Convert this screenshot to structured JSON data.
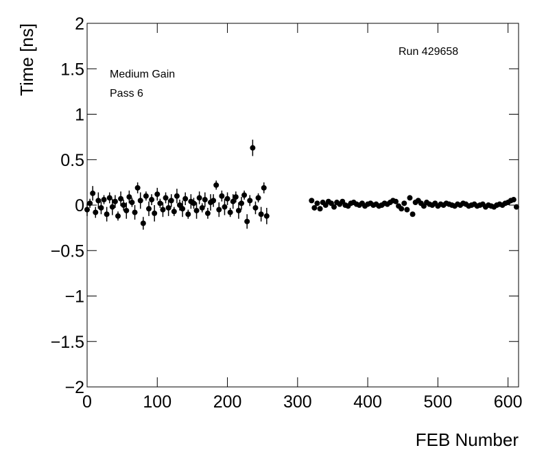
{
  "chart_data": {
    "type": "errorbar",
    "xlabel": "FEB Number",
    "ylabel": "Time [ns]",
    "annotations": [
      "Medium Gain",
      "Pass 6",
      "Run 429658"
    ],
    "color": "#000000",
    "xlim": [
      0,
      615
    ],
    "ylim": [
      -2,
      2
    ],
    "xticks": [
      0,
      100,
      200,
      300,
      400,
      500,
      600
    ],
    "yticks": [
      {
        "value": -2,
        "label": "−2"
      },
      {
        "value": -1.5,
        "label": "−1.5"
      },
      {
        "value": -1,
        "label": "−1"
      },
      {
        "value": -0.5,
        "label": "−0.5"
      },
      0,
      0.5,
      1,
      1.5,
      2
    ],
    "x": [
      0,
      4,
      8,
      12,
      16,
      20,
      24,
      28,
      32,
      36,
      40,
      44,
      48,
      52,
      56,
      60,
      64,
      68,
      72,
      76,
      80,
      84,
      88,
      92,
      96,
      100,
      104,
      108,
      112,
      116,
      120,
      124,
      128,
      132,
      136,
      140,
      144,
      148,
      152,
      156,
      160,
      164,
      168,
      172,
      176,
      180,
      184,
      188,
      192,
      196,
      200,
      204,
      208,
      212,
      216,
      220,
      224,
      228,
      232,
      236,
      240,
      244,
      248,
      252,
      256,
      320,
      324,
      328,
      332,
      336,
      340,
      344,
      348,
      352,
      356,
      360,
      364,
      368,
      372,
      376,
      380,
      384,
      388,
      392,
      396,
      400,
      404,
      408,
      412,
      416,
      420,
      424,
      428,
      432,
      436,
      440,
      444,
      448,
      452,
      456,
      460,
      464,
      468,
      472,
      476,
      480,
      484,
      488,
      492,
      496,
      500,
      504,
      508,
      512,
      516,
      520,
      524,
      528,
      532,
      536,
      540,
      544,
      548,
      552,
      556,
      560,
      564,
      568,
      572,
      576,
      580,
      584,
      588,
      592,
      596,
      600,
      604,
      608,
      612
    ],
    "values": [
      -0.05,
      0.02,
      0.13,
      -0.08,
      0.05,
      -0.03,
      0.06,
      -0.1,
      0.08,
      -0.02,
      0.04,
      -0.12,
      0.07,
      0.0,
      -0.06,
      0.09,
      0.03,
      -0.08,
      0.19,
      0.05,
      -0.2,
      0.1,
      -0.04,
      0.06,
      -0.09,
      0.12,
      0.02,
      -0.05,
      0.08,
      -0.03,
      0.05,
      -0.07,
      0.1,
      0.0,
      -0.04,
      0.07,
      -0.1,
      0.04,
      0.02,
      -0.06,
      0.08,
      -0.03,
      0.06,
      -0.09,
      0.03,
      0.05,
      0.22,
      -0.05,
      0.1,
      -0.02,
      0.07,
      -0.08,
      0.04,
      0.09,
      -0.06,
      0.02,
      0.11,
      -0.18,
      0.05,
      0.63,
      -0.03,
      0.08,
      -0.1,
      0.19,
      -0.12,
      0.05,
      -0.03,
      0.02,
      -0.04,
      0.03,
      0.0,
      0.04,
      0.02,
      -0.02,
      0.03,
      0.01,
      0.04,
      0.0,
      -0.01,
      0.02,
      0.03,
      0.01,
      0.0,
      0.02,
      -0.01,
      0.01,
      0.02,
      0.0,
      0.01,
      -0.01,
      0.0,
      0.02,
      0.01,
      0.03,
      0.05,
      0.04,
      -0.01,
      -0.04,
      0.02,
      -0.05,
      0.08,
      -0.1,
      0.03,
      0.05,
      0.02,
      -0.01,
      0.03,
      0.01,
      0.0,
      0.02,
      -0.01,
      0.01,
      0.0,
      0.02,
      0.01,
      0.0,
      -0.01,
      0.01,
      0.0,
      0.02,
      0.01,
      -0.01,
      0.0,
      0.01,
      -0.01,
      0.0,
      0.01,
      -0.02,
      0.0,
      -0.01,
      -0.02,
      0.0,
      0.01,
      0.0,
      0.02,
      0.03,
      0.05,
      0.06,
      -0.02
    ],
    "errors": [
      0.07,
      0.05,
      0.08,
      0.06,
      0.09,
      0.07,
      0.05,
      0.08,
      0.06,
      0.09,
      0.07,
      0.05,
      0.08,
      0.06,
      0.09,
      0.07,
      0.05,
      0.08,
      0.06,
      0.09,
      0.07,
      0.05,
      0.08,
      0.06,
      0.09,
      0.07,
      0.05,
      0.08,
      0.06,
      0.09,
      0.07,
      0.05,
      0.08,
      0.06,
      0.09,
      0.07,
      0.05,
      0.08,
      0.06,
      0.09,
      0.07,
      0.05,
      0.08,
      0.06,
      0.09,
      0.07,
      0.05,
      0.08,
      0.06,
      0.09,
      0.07,
      0.05,
      0.08,
      0.06,
      0.09,
      0.07,
      0.05,
      0.08,
      0.06,
      0.09,
      0.07,
      0.05,
      0.08,
      0.06,
      0.09,
      0.015,
      0.015,
      0.015,
      0.015,
      0.015,
      0.015,
      0.015,
      0.015,
      0.015,
      0.015,
      0.015,
      0.015,
      0.015,
      0.015,
      0.015,
      0.015,
      0.015,
      0.015,
      0.015,
      0.015,
      0.015,
      0.015,
      0.015,
      0.015,
      0.015,
      0.015,
      0.015,
      0.015,
      0.015,
      0.015,
      0.015,
      0.015,
      0.015,
      0.015,
      0.015,
      0.015,
      0.015,
      0.015,
      0.015,
      0.015,
      0.015,
      0.015,
      0.015,
      0.015,
      0.015,
      0.015,
      0.015,
      0.015,
      0.015,
      0.015,
      0.015,
      0.015,
      0.015,
      0.015,
      0.015,
      0.015,
      0.015,
      0.015,
      0.015,
      0.015,
      0.015,
      0.015,
      0.015,
      0.015,
      0.015,
      0.015,
      0.015,
      0.015,
      0.015,
      0.015,
      0.015,
      0.015,
      0.015,
      0.015
    ]
  }
}
